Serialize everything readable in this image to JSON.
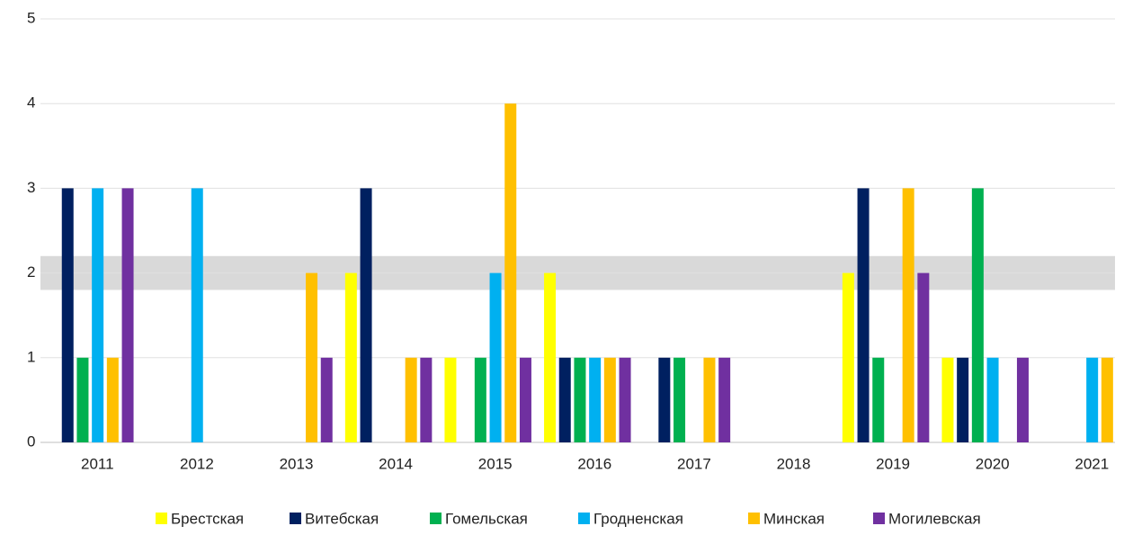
{
  "chart_data": {
    "type": "bar",
    "categories": [
      "2011",
      "2012",
      "2013",
      "2014",
      "2015",
      "2016",
      "2017",
      "2018",
      "2019",
      "2020",
      "2021"
    ],
    "series": [
      {
        "name": "Брестская",
        "color": "#ffff00",
        "values": [
          0,
          0,
          0,
          2,
          1,
          2,
          0,
          0,
          2,
          1,
          0
        ]
      },
      {
        "name": "Витебская",
        "color": "#002060",
        "values": [
          3,
          0,
          0,
          3,
          0,
          1,
          1,
          0,
          3,
          1,
          0
        ]
      },
      {
        "name": "Гомельская",
        "color": "#00b050",
        "values": [
          1,
          0,
          0,
          0,
          1,
          1,
          1,
          0,
          1,
          3,
          0
        ]
      },
      {
        "name": "Гродненская",
        "color": "#00b0f0",
        "values": [
          3,
          3,
          0,
          0,
          2,
          1,
          0,
          0,
          0,
          1,
          1
        ]
      },
      {
        "name": "Минская",
        "color": "#ffc000",
        "values": [
          1,
          0,
          2,
          1,
          4,
          1,
          1,
          0,
          3,
          0,
          1
        ]
      },
      {
        "name": "Могилевская",
        "color": "#7030a0",
        "values": [
          3,
          0,
          1,
          1,
          1,
          1,
          1,
          0,
          2,
          1,
          0
        ]
      }
    ],
    "ylim": [
      0,
      5
    ],
    "yticks": [
      0,
      1,
      2,
      3,
      4,
      5
    ],
    "grid": true,
    "highlight_band": [
      1.8,
      2.2
    ],
    "legend": "bottom"
  }
}
